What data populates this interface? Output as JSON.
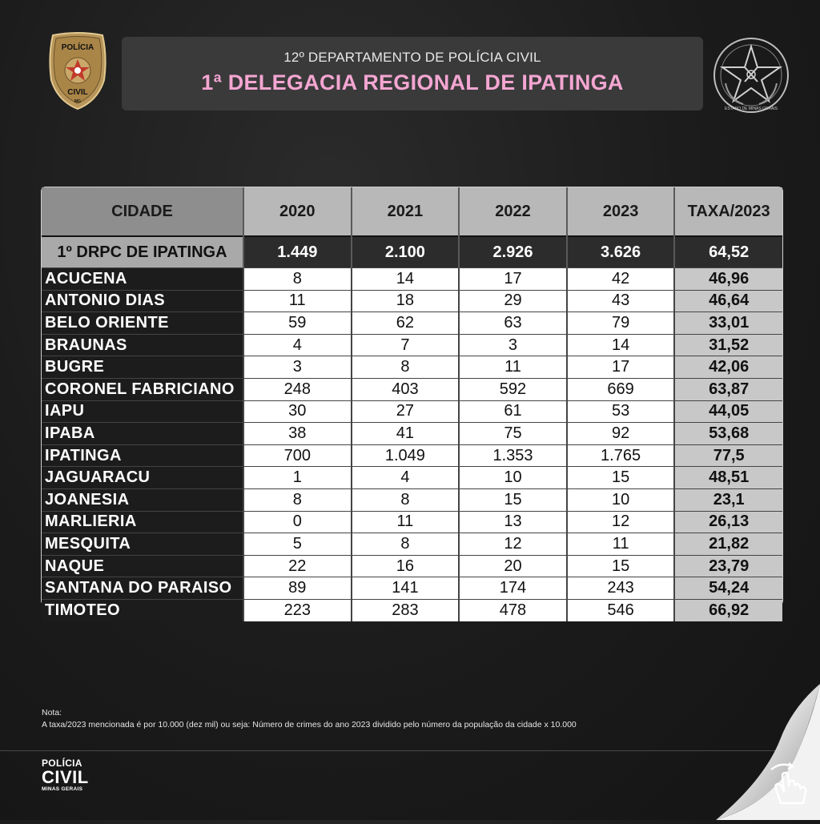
{
  "badge_left": {
    "text_top": "POLÍCIA",
    "text_bottom": "CIVIL",
    "text_tiny": "MG"
  },
  "seal_right": {
    "text": "ESTADO DE MINAS GERAIS"
  },
  "header": {
    "subtitle": "12º DEPARTAMENTO DE POLÍCIA CIVIL",
    "title": "1ª DELEGACIA REGIONAL DE IPATINGA"
  },
  "table": {
    "headers": [
      "CIDADE",
      "2020",
      "2021",
      "2022",
      "2023",
      "TAXA/2023"
    ],
    "total": {
      "name": "1º DRPC DE IPATINGA",
      "y2020": "1.449",
      "y2021": "2.100",
      "y2022": "2.926",
      "y2023": "3.626",
      "rate": "64,52"
    },
    "rows": [
      {
        "name": "ACUCENA",
        "y2020": "8",
        "y2021": "14",
        "y2022": "17",
        "y2023": "42",
        "rate": "46,96"
      },
      {
        "name": "ANTONIO DIAS",
        "y2020": "11",
        "y2021": "18",
        "y2022": "29",
        "y2023": "43",
        "rate": "46,64"
      },
      {
        "name": "BELO ORIENTE",
        "y2020": "59",
        "y2021": "62",
        "y2022": "63",
        "y2023": "79",
        "rate": "33,01"
      },
      {
        "name": "BRAUNAS",
        "y2020": "4",
        "y2021": "7",
        "y2022": "3",
        "y2023": "14",
        "rate": "31,52"
      },
      {
        "name": "BUGRE",
        "y2020": "3",
        "y2021": "8",
        "y2022": "11",
        "y2023": "17",
        "rate": "42,06"
      },
      {
        "name": "CORONEL FABRICIANO",
        "y2020": "248",
        "y2021": "403",
        "y2022": "592",
        "y2023": "669",
        "rate": "63,87"
      },
      {
        "name": "IAPU",
        "y2020": "30",
        "y2021": "27",
        "y2022": "61",
        "y2023": "53",
        "rate": "44,05"
      },
      {
        "name": "IPABA",
        "y2020": "38",
        "y2021": "41",
        "y2022": "75",
        "y2023": "92",
        "rate": "53,68"
      },
      {
        "name": "IPATINGA",
        "y2020": "700",
        "y2021": "1.049",
        "y2022": "1.353",
        "y2023": "1.765",
        "rate": "77,5"
      },
      {
        "name": "JAGUARACU",
        "y2020": "1",
        "y2021": "4",
        "y2022": "10",
        "y2023": "15",
        "rate": "48,51"
      },
      {
        "name": "JOANESIA",
        "y2020": "8",
        "y2021": "8",
        "y2022": "15",
        "y2023": "10",
        "rate": "23,1"
      },
      {
        "name": "MARLIERIA",
        "y2020": "0",
        "y2021": "11",
        "y2022": "13",
        "y2023": "12",
        "rate": "26,13"
      },
      {
        "name": "MESQUITA",
        "y2020": "5",
        "y2021": "8",
        "y2022": "12",
        "y2023": "11",
        "rate": "21,82"
      },
      {
        "name": "NAQUE",
        "y2020": "22",
        "y2021": "16",
        "y2022": "20",
        "y2023": "15",
        "rate": "23,79"
      },
      {
        "name": "SANTANA DO PARAISO",
        "y2020": "89",
        "y2021": "141",
        "y2022": "174",
        "y2023": "243",
        "rate": "54,24"
      },
      {
        "name": "TIMOTEO",
        "y2020": "223",
        "y2021": "283",
        "y2022": "478",
        "y2023": "546",
        "rate": "66,92"
      }
    ]
  },
  "note": {
    "label": "Nota:",
    "text": "A taxa/2023 mencionada é por 10.000 (dez mil) ou seja: Número de crimes do ano 2023 dividido pelo número da população da cidade x 10.000"
  },
  "footer": {
    "line1": "POLÍCIA",
    "line2": "CIVIL",
    "line3": "MINAS GERAIS"
  },
  "icons": {
    "badge": "police-badge-icon",
    "seal": "state-seal-icon",
    "swipe": "swipe-hand-icon"
  },
  "colors": {
    "title": "#f4a6d2",
    "background": "#1b1b1b",
    "header_box": "#3a3a3a"
  }
}
